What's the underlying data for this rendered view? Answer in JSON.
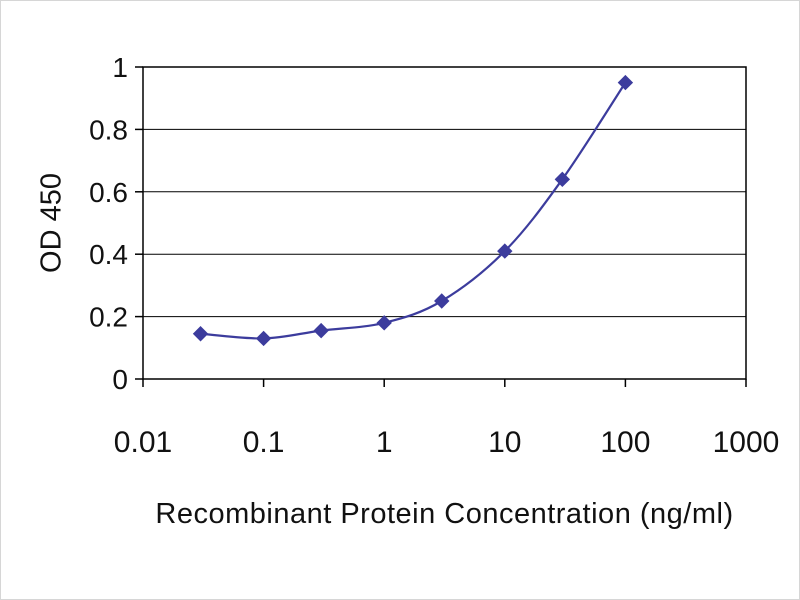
{
  "page": {
    "background": "#ffffff",
    "border_color": "#d6d6d6"
  },
  "chart_data": {
    "type": "line",
    "title": "",
    "xlabel": "Recombinant Protein Concentration (ng/ml)",
    "ylabel": "OD 450",
    "x_scale": "log",
    "xlim": [
      0.01,
      1000
    ],
    "ylim": [
      0,
      1
    ],
    "x_ticks": [
      0.01,
      0.1,
      1,
      10,
      100,
      1000
    ],
    "x_tick_labels": [
      "0.01",
      "0.1",
      "1",
      "10",
      "100",
      "1000"
    ],
    "y_ticks": [
      0,
      0.2,
      0.4,
      0.6,
      0.8,
      1
    ],
    "y_tick_labels": [
      "0",
      "0.2",
      "0.4",
      "0.6",
      "0.8",
      "1"
    ],
    "grid": "horizontal",
    "legend": "none",
    "axis_color": "#000000",
    "series": [
      {
        "name": "OD 450",
        "x": [
          0.03,
          0.1,
          0.3,
          1,
          3,
          10,
          30,
          100
        ],
        "y": [
          0.145,
          0.13,
          0.155,
          0.18,
          0.25,
          0.41,
          0.64,
          0.95
        ],
        "color": "#3c3c9d",
        "marker": "diamond",
        "smooth": true
      }
    ]
  }
}
